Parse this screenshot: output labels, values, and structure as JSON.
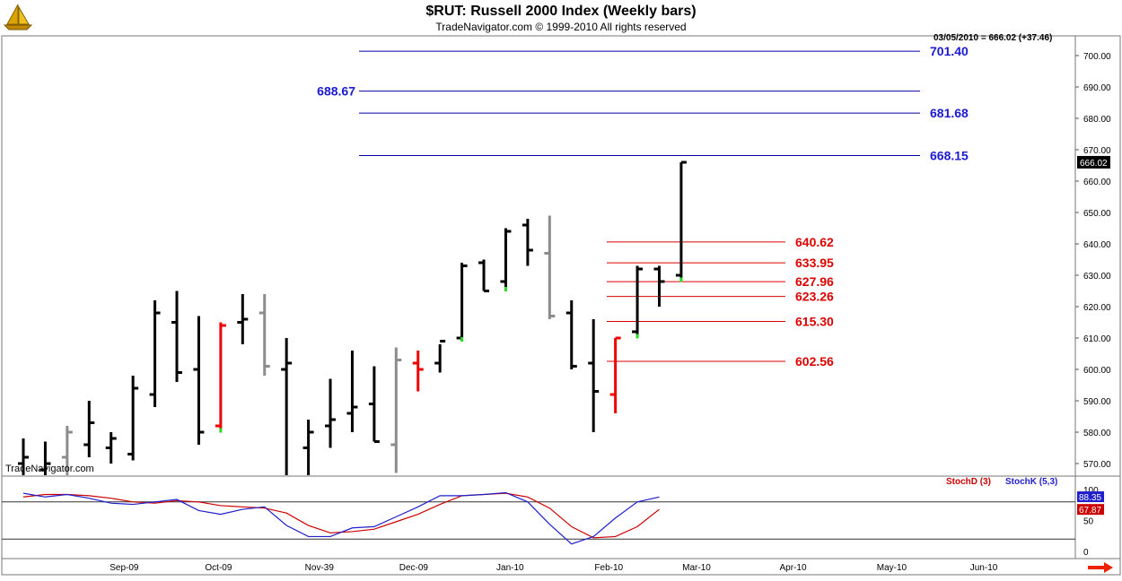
{
  "header": {
    "title": "$RUT:  Russell 2000 Index  (Weekly bars)",
    "subtitle": "TradeNavigator.com © 1999-2010 All rights reserved",
    "readout": "03/05/2010 = 666.02 (+37.46)",
    "watermark": "TradeNavigator.com"
  },
  "colors": {
    "bar_up": "#000000",
    "bar_gray": "#8c8c8c",
    "bar_red": "#ee0000",
    "close_green": "#22dd22",
    "level_blue": "#0000aa",
    "level_red": "#dd0000",
    "stoch_k": "#1f1fcc",
    "stoch_d": "#cc0000"
  },
  "chart_data": [
    {
      "type": "ohlc",
      "title": "$RUT:  Russell 2000 Index  (Weekly bars)",
      "ylim": [
        565,
        710
      ],
      "y_ticks": [
        "570.00",
        "580.00",
        "590.00",
        "600.00",
        "610.00",
        "620.00",
        "630.00",
        "640.00",
        "650.00",
        "660.00",
        "670.00",
        "680.00",
        "690.00",
        "700.00"
      ],
      "last_price_label": "666.02",
      "x_ticks": [
        {
          "label": "Sep-09",
          "week": 4.6
        },
        {
          "label": "Oct-09",
          "week": 8.9
        },
        {
          "label": "Nov-39",
          "week": 13.5
        },
        {
          "label": "Dec-09",
          "week": 17.8
        },
        {
          "label": "Jan-10",
          "week": 22.2
        },
        {
          "label": "Feb-10",
          "week": 26.7
        },
        {
          "label": "Mar-10",
          "week": 30.7
        },
        {
          "label": "Apr-10",
          "week": 35.1
        },
        {
          "label": "May-10",
          "week": 39.6
        },
        {
          "label": "Jun-10",
          "week": 43.8
        }
      ],
      "bars": [
        {
          "week": 0,
          "open": 570,
          "high": 578,
          "low": 566,
          "close": 572,
          "color": "black"
        },
        {
          "week": 1,
          "open": 568,
          "high": 577,
          "low": 566,
          "close": 570,
          "color": "black"
        },
        {
          "week": 2,
          "open": 572,
          "high": 582,
          "low": 566,
          "close": 580,
          "color": "gray"
        },
        {
          "week": 3,
          "open": 576,
          "high": 590,
          "low": 572,
          "close": 583,
          "color": "black"
        },
        {
          "week": 4,
          "open": 575,
          "high": 580,
          "low": 570,
          "close": 578,
          "color": "black"
        },
        {
          "week": 5,
          "open": 573,
          "high": 598,
          "low": 571,
          "close": 594,
          "color": "black"
        },
        {
          "week": 6,
          "open": 592,
          "high": 622,
          "low": 588,
          "close": 618,
          "color": "black"
        },
        {
          "week": 7,
          "open": 615,
          "high": 625,
          "low": 596,
          "close": 599,
          "color": "black"
        },
        {
          "week": 8,
          "open": 600,
          "high": 617,
          "low": 576,
          "close": 580,
          "color": "black"
        },
        {
          "week": 9,
          "open": 582,
          "high": 615,
          "low": 581,
          "close": 614,
          "color": "red"
        },
        {
          "week": 10,
          "open": 615,
          "high": 624,
          "low": 608,
          "close": 616,
          "color": "black"
        },
        {
          "week": 11,
          "open": 618,
          "high": 624,
          "low": 598,
          "close": 601,
          "color": "gray"
        },
        {
          "week": 12,
          "open": 600,
          "high": 610,
          "low": 566,
          "close": 602,
          "color": "black"
        },
        {
          "week": 13,
          "open": 575,
          "high": 584,
          "low": 566,
          "close": 580,
          "color": "black"
        },
        {
          "week": 14,
          "open": 582,
          "high": 597,
          "low": 575,
          "close": 584,
          "color": "black"
        },
        {
          "week": 15,
          "open": 586,
          "high": 606,
          "low": 580,
          "close": 588,
          "color": "black"
        },
        {
          "week": 16,
          "open": 589,
          "high": 601,
          "low": 577,
          "close": 577,
          "color": "black"
        },
        {
          "week": 17,
          "open": 576,
          "high": 607,
          "low": 567,
          "close": 603,
          "color": "gray"
        },
        {
          "week": 18,
          "open": 602,
          "high": 606,
          "low": 593,
          "close": 600,
          "color": "red"
        },
        {
          "week": 19,
          "open": 602,
          "high": 608,
          "low": 599,
          "close": 609,
          "color": "black"
        },
        {
          "week": 20,
          "open": 610,
          "high": 634,
          "low": 610,
          "close": 633,
          "color": "black"
        },
        {
          "week": 21,
          "open": 634,
          "high": 635,
          "low": 625,
          "close": 625,
          "color": "black"
        },
        {
          "week": 22,
          "open": 628,
          "high": 645,
          "low": 626,
          "close": 644,
          "color": "black"
        },
        {
          "week": 23,
          "open": 646,
          "high": 648,
          "low": 633,
          "close": 638,
          "color": "black"
        },
        {
          "week": 24,
          "open": 637,
          "high": 649,
          "low": 616,
          "close": 617,
          "color": "gray"
        },
        {
          "week": 25,
          "open": 618,
          "high": 622,
          "low": 600,
          "close": 601,
          "color": "black"
        },
        {
          "week": 26,
          "open": 602,
          "high": 616,
          "low": 580,
          "close": 593,
          "color": "black"
        },
        {
          "week": 27,
          "open": 592,
          "high": 610,
          "low": 586,
          "close": 610,
          "color": "red"
        },
        {
          "week": 28,
          "open": 612,
          "high": 633,
          "low": 611,
          "close": 632,
          "color": "black"
        },
        {
          "week": 29,
          "open": 632,
          "high": 633,
          "low": 620,
          "close": 628,
          "color": "black"
        },
        {
          "week": 30,
          "open": 630,
          "high": 666,
          "low": 629,
          "close": 666,
          "color": "black"
        }
      ],
      "levels": [
        {
          "label": "701.40",
          "value": 701.4,
          "color": "blue",
          "side": "right"
        },
        {
          "label": "688.67",
          "value": 688.67,
          "color": "blue",
          "side": "left"
        },
        {
          "label": "681.68",
          "value": 681.68,
          "color": "blue",
          "side": "right"
        },
        {
          "label": "668.15",
          "value": 668.15,
          "color": "blue",
          "side": "right"
        },
        {
          "label": "640.62",
          "value": 640.62,
          "color": "red",
          "side": "right"
        },
        {
          "label": "633.95",
          "value": 633.95,
          "color": "red",
          "side": "right"
        },
        {
          "label": "627.96",
          "value": 627.96,
          "color": "red",
          "side": "right"
        },
        {
          "label": "623.26",
          "value": 623.26,
          "color": "red",
          "side": "right"
        },
        {
          "label": "615.30",
          "value": 615.3,
          "color": "red",
          "side": "right"
        },
        {
          "label": "602.56",
          "value": 602.56,
          "color": "red",
          "side": "right"
        }
      ]
    },
    {
      "type": "line",
      "title": "",
      "ylim": [
        -8,
        108
      ],
      "y_ticks": [
        "100",
        "50",
        "0"
      ],
      "reference_lines": [
        80,
        20
      ],
      "series": [
        {
          "name": "StochD (3)",
          "color": "stoch_d",
          "values": [
            88,
            92,
            92,
            90,
            86,
            80,
            78,
            82,
            80,
            74,
            72,
            70,
            62,
            42,
            30,
            32,
            36,
            48,
            60,
            76,
            90,
            92,
            94,
            88,
            70,
            40,
            22,
            24,
            40,
            68
          ]
        },
        {
          "name": "StochK (5,3)",
          "color": "stoch_k",
          "values": [
            94,
            88,
            92,
            86,
            78,
            76,
            80,
            84,
            66,
            60,
            68,
            72,
            42,
            24,
            24,
            38,
            40,
            56,
            72,
            90,
            90,
            92,
            95,
            80,
            44,
            12,
            24,
            54,
            80,
            88
          ]
        }
      ],
      "last_values": [
        "88.35",
        "67.87"
      ]
    }
  ]
}
